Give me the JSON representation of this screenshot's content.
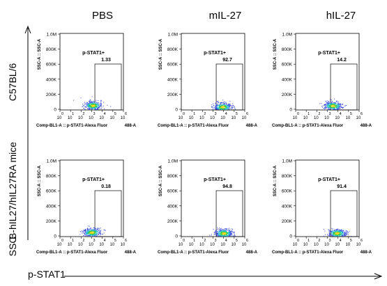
{
  "chart_data": {
    "type": "scatter",
    "columns": [
      "PBS",
      "mIL-27",
      "hIL-27"
    ],
    "rows": [
      "C57BL/6",
      "B-hIL27/hIL27RA mice"
    ],
    "panel_ylabel": "SSC-A :: SSC-A",
    "panel_xlabel": "Comp-BL1-A :: p-STAT1-Alexa Fluor",
    "panel_xlabel_suffix": "488-A",
    "gate_label": "p-STAT1+",
    "y_ticks": [
      "0",
      "200K",
      "400K",
      "600K",
      "800K",
      "1.0M"
    ],
    "x_ticks": [
      "0",
      "1",
      "2",
      "3",
      "4",
      "5",
      "6"
    ],
    "x_tick_base": "10",
    "panels": [
      {
        "row": 0,
        "col": 0,
        "gate_value": "1.33",
        "cluster_x": 3.1,
        "cluster_y": 60000
      },
      {
        "row": 0,
        "col": 1,
        "gate_value": "92.7",
        "cluster_x": 3.9,
        "cluster_y": 40000
      },
      {
        "row": 0,
        "col": 2,
        "gate_value": "14.2",
        "cluster_x": 3.5,
        "cluster_y": 55000
      },
      {
        "row": 1,
        "col": 0,
        "gate_value": "0.18",
        "cluster_x": 3.0,
        "cluster_y": 55000
      },
      {
        "row": 1,
        "col": 1,
        "gate_value": "94.8",
        "cluster_x": 4.0,
        "cluster_y": 45000
      },
      {
        "row": 1,
        "col": 2,
        "gate_value": "91.4",
        "cluster_x": 3.9,
        "cluster_y": 45000
      }
    ],
    "gate_x_range": [
      3.3,
      6
    ],
    "gate_y_range": [
      0,
      600000
    ],
    "left_axis_label": "SSC",
    "bottom_axis_label": "p-STAT1"
  }
}
